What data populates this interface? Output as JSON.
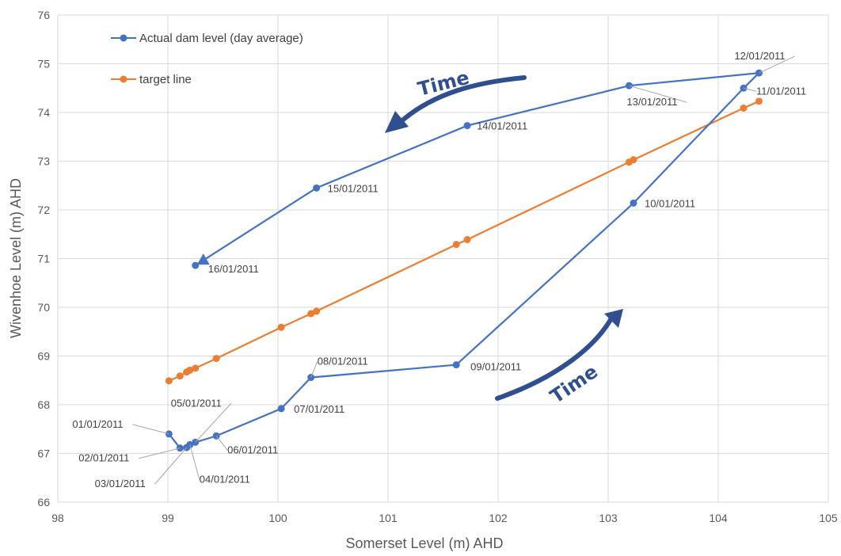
{
  "chart_data": {
    "type": "scatter",
    "xlabel": "Somerset Level (m) AHD",
    "ylabel": "Wivenhoe Level (m) AHD",
    "xlim": [
      98,
      105
    ],
    "ylim": [
      66,
      76
    ],
    "x_ticks": [
      98,
      99,
      100,
      101,
      102,
      103,
      104,
      105
    ],
    "y_ticks": [
      66,
      67,
      68,
      69,
      70,
      71,
      72,
      73,
      74,
      75,
      76
    ],
    "grid": "vertical",
    "legend_position": "top-left",
    "colors": {
      "actual": "#4472c4",
      "target": "#ed7d31",
      "arrow": "#2f4f8f",
      "grid": "#d9d9d9"
    },
    "series": [
      {
        "name": "Actual dam level (day average)",
        "color": "#4472c4",
        "points": [
          {
            "x": 99.01,
            "y": 67.4,
            "label": "01/01/2011"
          },
          {
            "x": 99.11,
            "y": 67.11,
            "label": "02/01/2011"
          },
          {
            "x": 99.17,
            "y": 67.12,
            "label": "03/01/2011"
          },
          {
            "x": 99.2,
            "y": 67.18,
            "label": "04/01/2011"
          },
          {
            "x": 99.25,
            "y": 67.23,
            "label": "05/01/2011"
          },
          {
            "x": 99.44,
            "y": 67.36,
            "label": "06/01/2011"
          },
          {
            "x": 100.03,
            "y": 67.92,
            "label": "07/01/2011"
          },
          {
            "x": 100.3,
            "y": 68.56,
            "label": "08/01/2011"
          },
          {
            "x": 101.62,
            "y": 68.82,
            "label": "09/01/2011"
          },
          {
            "x": 103.23,
            "y": 72.14,
            "label": "10/01/2011"
          },
          {
            "x": 104.23,
            "y": 74.5,
            "label": "11/01/2011"
          },
          {
            "x": 104.37,
            "y": 74.81,
            "label": "12/01/2011"
          },
          {
            "x": 103.19,
            "y": 74.55,
            "label": "13/01/2011"
          },
          {
            "x": 101.72,
            "y": 73.73,
            "label": "14/01/2011"
          },
          {
            "x": 100.35,
            "y": 72.45,
            "label": "15/01/2011"
          },
          {
            "x": 99.25,
            "y": 70.86,
            "label": "16/01/2011"
          }
        ]
      },
      {
        "name": "target line",
        "color": "#ed7d31",
        "points": [
          {
            "x": 99.01,
            "y": 68.49
          },
          {
            "x": 99.11,
            "y": 68.59
          },
          {
            "x": 99.17,
            "y": 68.67
          },
          {
            "x": 99.2,
            "y": 68.71
          },
          {
            "x": 99.25,
            "y": 68.75
          },
          {
            "x": 99.44,
            "y": 68.95
          },
          {
            "x": 100.03,
            "y": 69.59
          },
          {
            "x": 100.3,
            "y": 69.87
          },
          {
            "x": 100.35,
            "y": 69.92
          },
          {
            "x": 101.62,
            "y": 71.29
          },
          {
            "x": 101.72,
            "y": 71.39
          },
          {
            "x": 103.19,
            "y": 72.98
          },
          {
            "x": 103.23,
            "y": 73.03
          },
          {
            "x": 104.23,
            "y": 74.09
          },
          {
            "x": 104.37,
            "y": 74.23
          }
        ]
      }
    ],
    "annotations": [
      {
        "text": "Time",
        "direction": "toward lower-left"
      },
      {
        "text": "Time",
        "direction": "toward upper-right"
      }
    ]
  }
}
